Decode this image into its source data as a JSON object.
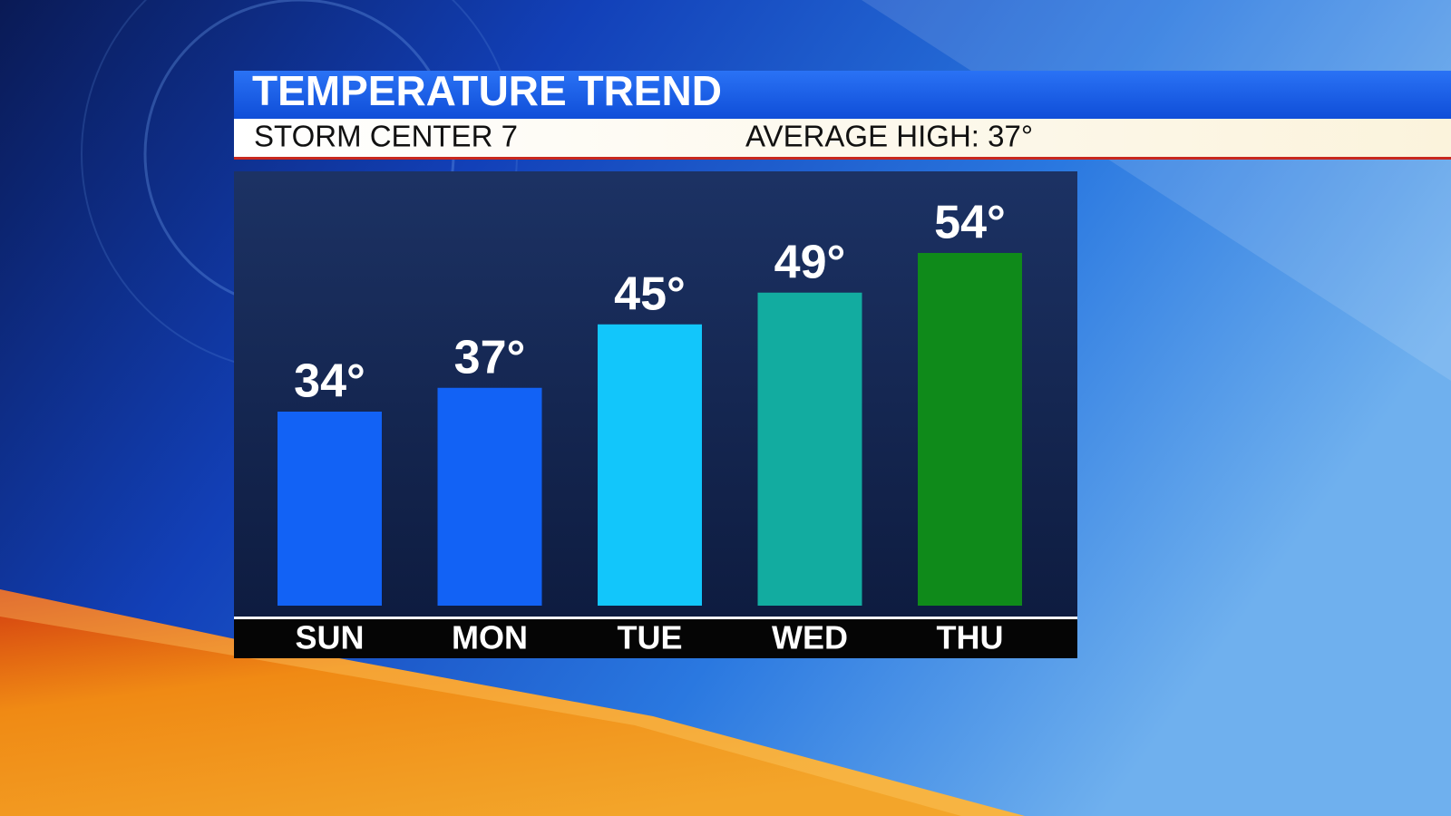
{
  "chart_data": {
    "type": "bar",
    "title": "TEMPERATURE TREND",
    "subtitle": "STORM CENTER 7",
    "annotation": "AVERAGE HIGH: 37°",
    "categories": [
      "SUN",
      "MON",
      "TUE",
      "WED",
      "THU"
    ],
    "values": [
      34,
      37,
      45,
      49,
      54
    ],
    "value_labels": [
      "34°",
      "37°",
      "45°",
      "49°",
      "54°"
    ],
    "colors": [
      "#1262f5",
      "#1262f5",
      "#12c6fb",
      "#12aca0",
      "#0f8a1a"
    ]
  }
}
